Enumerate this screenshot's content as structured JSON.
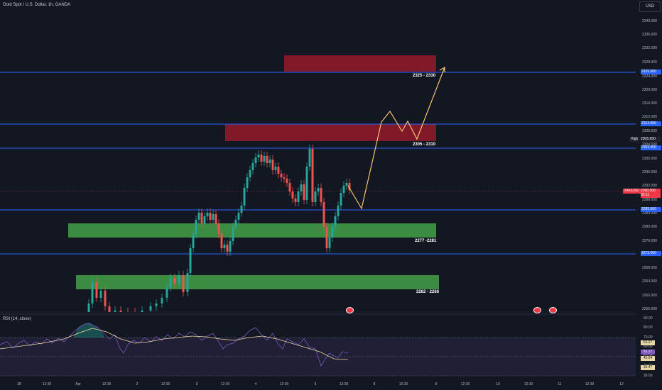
{
  "header": {
    "title": "Gold Spot / U.S. Dollar, 1h, OANDA",
    "currency": "USD"
  },
  "price_axis": {
    "ticks": [
      "2340.000",
      "2336.000",
      "2332.000",
      "2328.000",
      "2324.000",
      "2320.000",
      "2316.000",
      "2312.000",
      "2308.000",
      "2304.000",
      "2300.000",
      "2296.000",
      "2292.000",
      "2288.000",
      "2284.000",
      "2280.000",
      "2276.000",
      "2272.000",
      "2268.000",
      "2264.000",
      "2260.000",
      "2256.000"
    ],
    "levels": [
      "2325.000",
      "2313.000",
      "2303.000",
      "2285.000",
      "2272.000"
    ],
    "high_label": "High",
    "high_value": "2305.650",
    "symbol_label": "XAUUSD",
    "last_price": "2290.300",
    "countdown": "03:11"
  },
  "zones": {
    "z1": "2325 - 2330",
    "z2": "2305 - 2310",
    "z3": "2277 -2281",
    "z4": "2262 - 2266"
  },
  "rsi": {
    "title": "RSI (14, close)",
    "ticks": [
      "90.00",
      "80.00",
      "70.00",
      "60.00",
      "50.00",
      "40.00",
      "30.00"
    ],
    "values": [
      "63.27",
      "51.17",
      "45.04",
      "35.47"
    ]
  },
  "time_axis": {
    "labels": [
      "28",
      "12:30",
      "Apr",
      "12:30",
      "2",
      "12:30",
      "3",
      "12:30",
      "4",
      "12:30",
      "5",
      "12:30",
      "8",
      "12:30",
      "9",
      "12:30",
      "10",
      "12:30",
      "11",
      "12:30",
      "12"
    ]
  },
  "colors": {
    "background": "#131722",
    "bull": "#26a69a",
    "bear": "#ef5350",
    "level_line": "#2962ff",
    "supply_zone": "#8e1a2b",
    "demand_zone": "#43a047",
    "projection": "#f6c66d",
    "rsi_line": "#7e57c2"
  }
}
